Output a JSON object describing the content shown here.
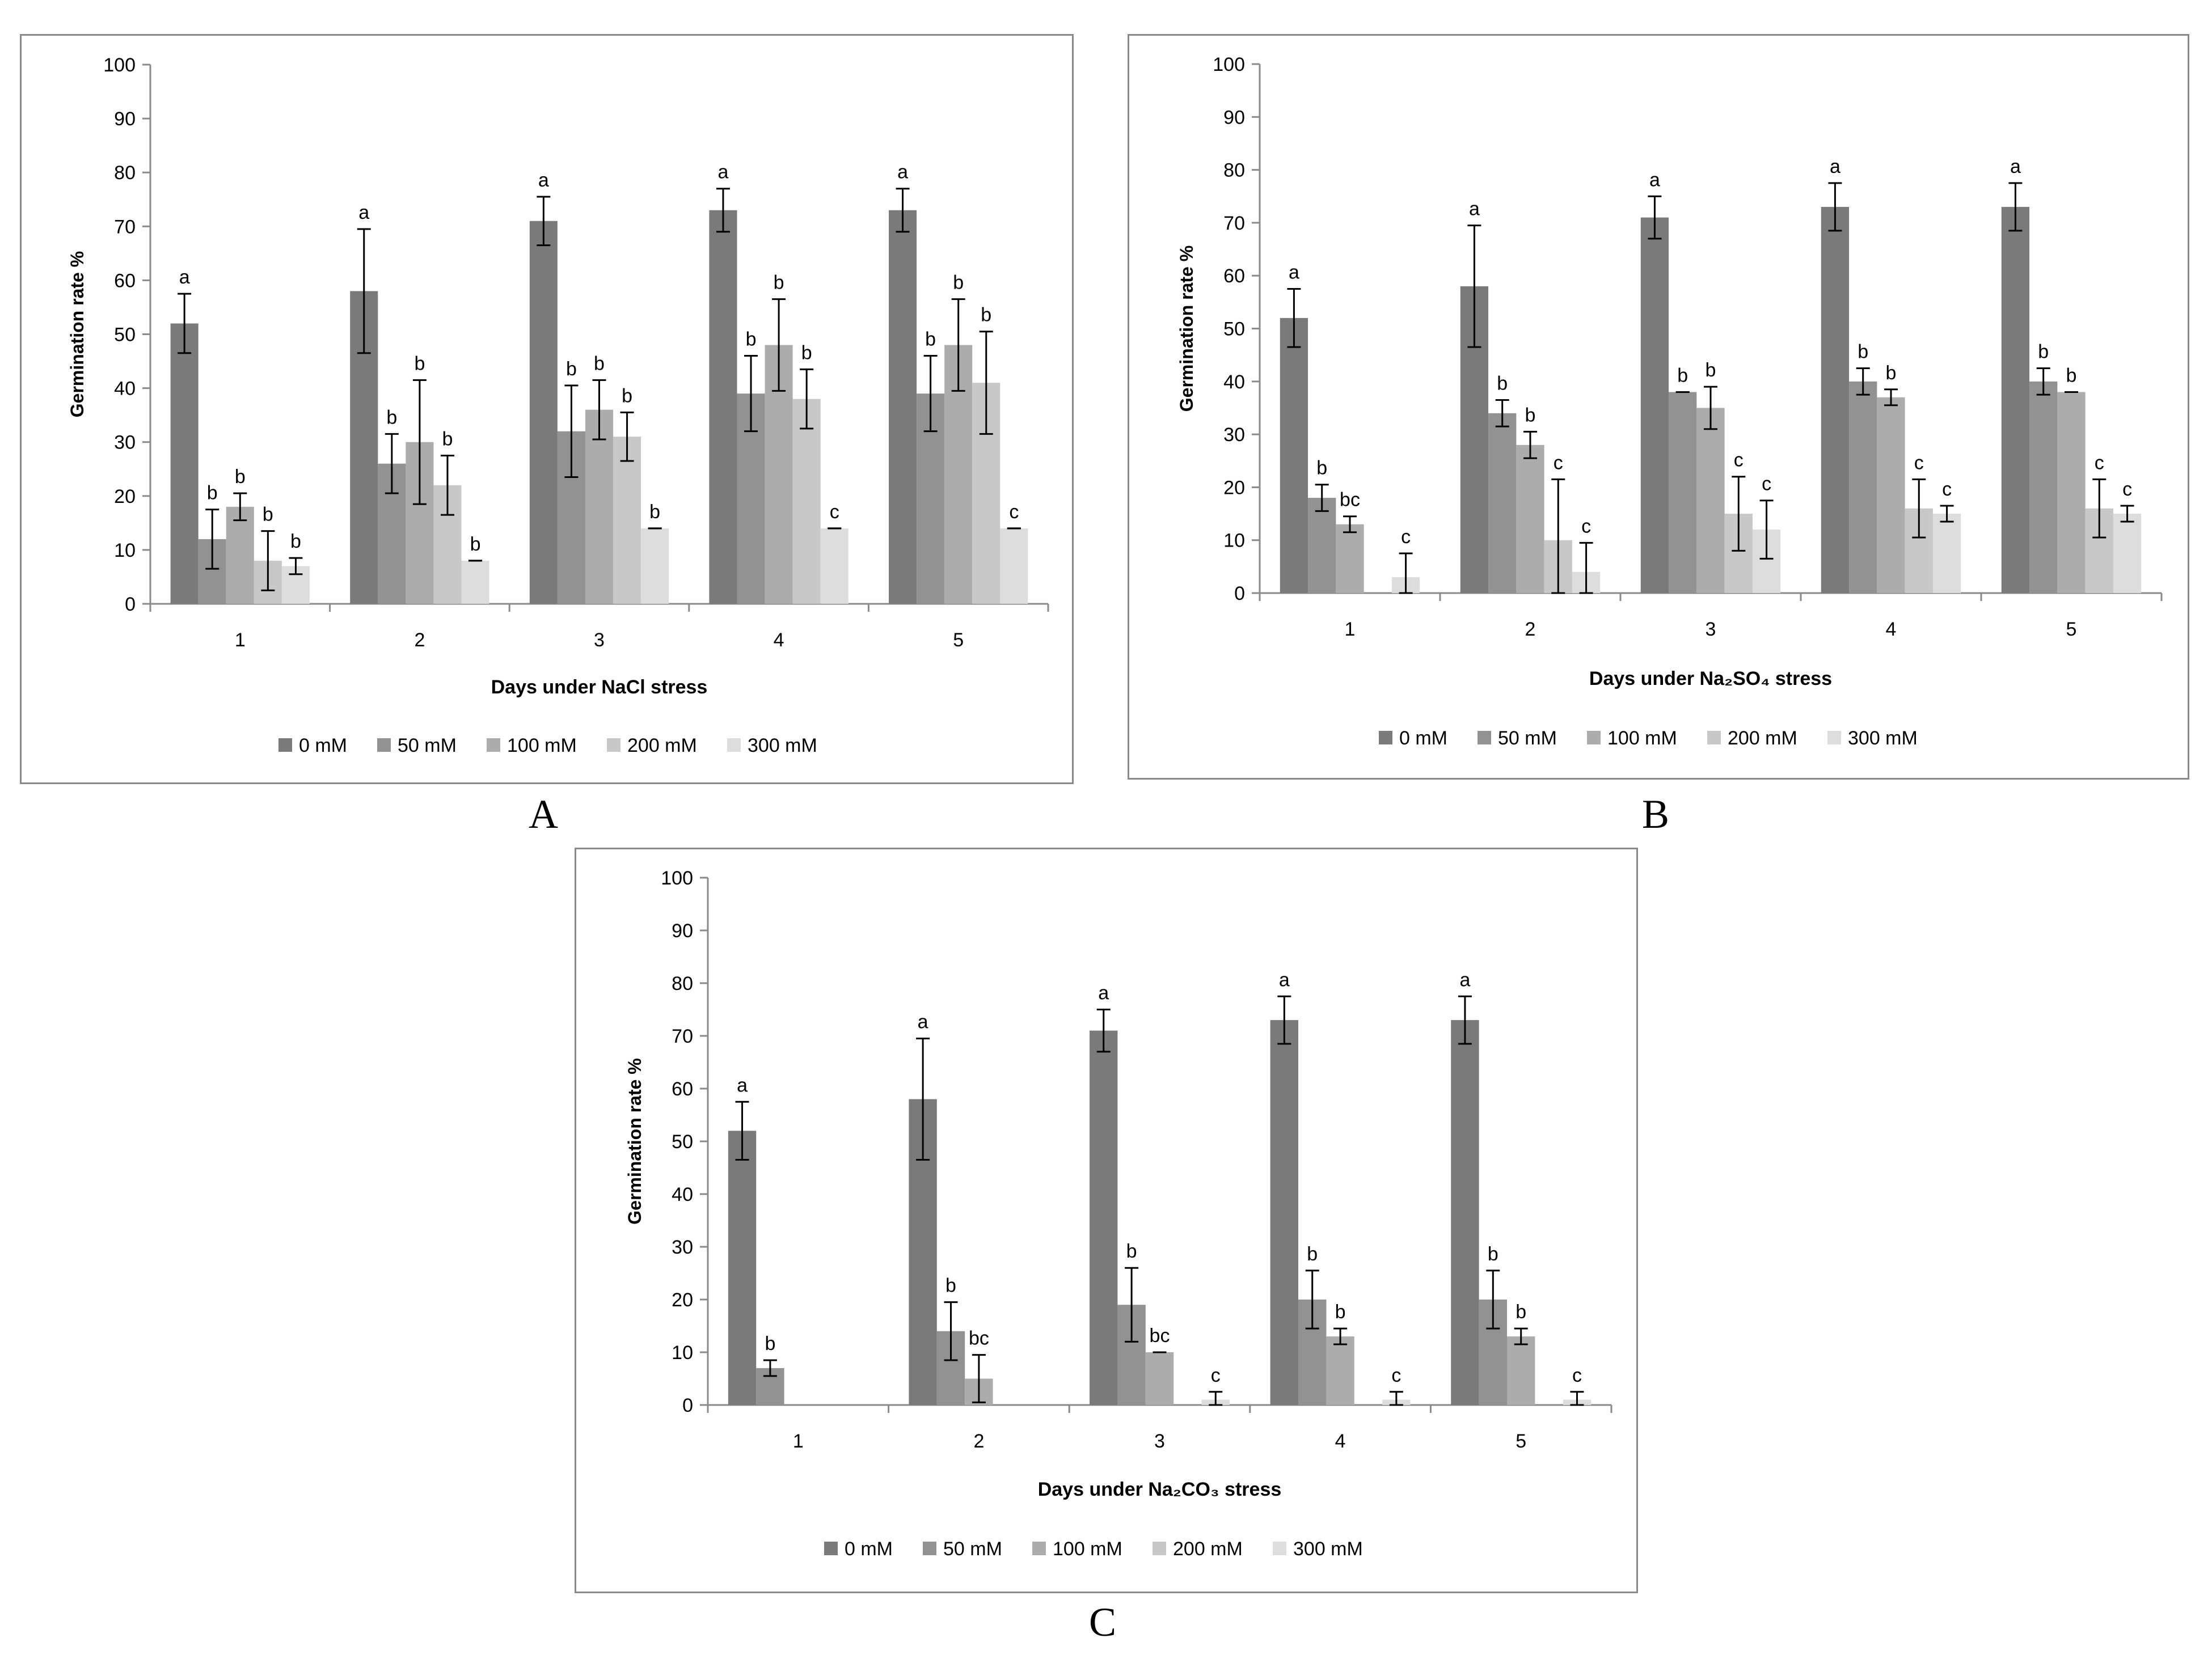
{
  "series_colors": [
    "#7a7a7a",
    "#929292",
    "#acacac",
    "#c8c8c8",
    "#dddddd"
  ],
  "panel_labels": [
    "A",
    "B",
    "C"
  ],
  "chart_data": [
    {
      "type": "bar",
      "panel": "A",
      "title": "",
      "xlabel": "Days under NaCl stress",
      "ylabel": "Germination rate %",
      "ylim": [
        0,
        100
      ],
      "yticks": [
        "0",
        "10",
        "20",
        "30",
        "40",
        "50",
        "60",
        "70",
        "80",
        "90",
        "100"
      ],
      "categories": [
        "1",
        "2",
        "3",
        "4",
        "5"
      ],
      "legend_position": "bottom",
      "series": [
        {
          "name": "0 mM",
          "values": [
            52,
            58,
            71,
            73,
            73
          ],
          "errors": [
            5.5,
            11.5,
            4.5,
            4,
            4
          ],
          "letters": [
            "a",
            "a",
            "a",
            "a",
            "a"
          ]
        },
        {
          "name": "50 mM",
          "values": [
            12,
            26,
            32,
            39,
            39
          ],
          "errors": [
            5.5,
            5.5,
            8.5,
            7,
            7
          ],
          "letters": [
            "b",
            "b",
            "b",
            "b",
            "b"
          ]
        },
        {
          "name": "100 mM",
          "values": [
            18,
            30,
            36,
            48,
            48
          ],
          "errors": [
            2.5,
            11.5,
            5.5,
            8.5,
            8.5
          ],
          "letters": [
            "b",
            "b",
            "b",
            "b",
            "b"
          ]
        },
        {
          "name": "200 mM",
          "values": [
            8,
            22,
            31,
            38,
            41
          ],
          "errors": [
            5.5,
            5.5,
            4.5,
            5.5,
            9.5
          ],
          "letters": [
            "b",
            "b",
            "b",
            "b",
            "b"
          ]
        },
        {
          "name": "300 mM",
          "values": [
            7,
            8,
            14,
            14,
            14
          ],
          "errors": [
            1.5,
            0,
            0,
            0,
            0
          ],
          "letters": [
            "b",
            "b",
            "b",
            "c",
            "c"
          ]
        }
      ]
    },
    {
      "type": "bar",
      "panel": "B",
      "title": "",
      "xlabel": "Days under Na₂SO₄ stress",
      "ylabel": "Germination rate %",
      "ylim": [
        0,
        100
      ],
      "yticks": [
        "0",
        "10",
        "20",
        "30",
        "40",
        "50",
        "60",
        "70",
        "80",
        "90",
        "100"
      ],
      "categories": [
        "1",
        "2",
        "3",
        "4",
        "5"
      ],
      "legend_position": "bottom",
      "series": [
        {
          "name": "0 mM",
          "values": [
            52,
            58,
            71,
            73,
            73
          ],
          "errors": [
            5.5,
            11.5,
            4,
            4.5,
            4.5
          ],
          "letters": [
            "a",
            "a",
            "a",
            "a",
            "a"
          ]
        },
        {
          "name": "50 mM",
          "values": [
            18,
            34,
            38,
            40,
            40
          ],
          "errors": [
            2.5,
            2.5,
            0,
            2.5,
            2.5
          ],
          "letters": [
            "b",
            "b",
            "b",
            "b",
            "b"
          ]
        },
        {
          "name": "100 mM",
          "values": [
            13,
            28,
            35,
            37,
            38
          ],
          "errors": [
            1.5,
            2.5,
            4,
            1.5,
            0
          ],
          "letters": [
            "bc",
            "b",
            "b",
            "b",
            "b"
          ]
        },
        {
          "name": "200 mM",
          "values": [
            0,
            10,
            15,
            16,
            16
          ],
          "errors": [
            0,
            11.5,
            7,
            5.5,
            5.5
          ],
          "letters": [
            "",
            "c",
            "c",
            "c",
            "c"
          ]
        },
        {
          "name": "300 mM",
          "values": [
            3,
            4,
            12,
            15,
            15
          ],
          "errors": [
            4.5,
            5.5,
            5.5,
            1.5,
            1.5
          ],
          "letters": [
            "c",
            "c",
            "c",
            "c",
            "c"
          ]
        }
      ]
    },
    {
      "type": "bar",
      "panel": "C",
      "title": "",
      "xlabel": "Days under Na₂CO₃ stress",
      "ylabel": "Germination rate %",
      "ylim": [
        0,
        100
      ],
      "yticks": [
        "0",
        "10",
        "20",
        "30",
        "40",
        "50",
        "60",
        "70",
        "80",
        "90",
        "100"
      ],
      "categories": [
        "1",
        "2",
        "3",
        "4",
        "5"
      ],
      "legend_position": "bottom",
      "series": [
        {
          "name": "0 mM",
          "values": [
            52,
            58,
            71,
            73,
            73
          ],
          "errors": [
            5.5,
            11.5,
            4,
            4.5,
            4.5
          ],
          "letters": [
            "a",
            "a",
            "a",
            "a",
            "a"
          ]
        },
        {
          "name": "50 mM",
          "values": [
            7,
            14,
            19,
            20,
            20
          ],
          "errors": [
            1.5,
            5.5,
            7,
            5.5,
            5.5
          ],
          "letters": [
            "b",
            "b",
            "b",
            "b",
            "b"
          ]
        },
        {
          "name": "100 mM",
          "values": [
            0,
            5,
            10,
            13,
            13
          ],
          "errors": [
            0,
            4.5,
            0,
            1.5,
            1.5
          ],
          "letters": [
            "",
            "bc",
            "bc",
            "b",
            "b"
          ]
        },
        {
          "name": "200 mM",
          "values": [
            0,
            0,
            0,
            0,
            0
          ],
          "errors": [
            0,
            0,
            0,
            0,
            0
          ],
          "letters": [
            "",
            "",
            "",
            "",
            ""
          ]
        },
        {
          "name": "300 mM",
          "values": [
            0,
            0,
            1,
            1,
            1
          ],
          "errors": [
            0,
            0,
            1.5,
            1.5,
            1.5
          ],
          "letters": [
            "",
            "",
            "c",
            "c",
            "c"
          ]
        }
      ]
    }
  ]
}
